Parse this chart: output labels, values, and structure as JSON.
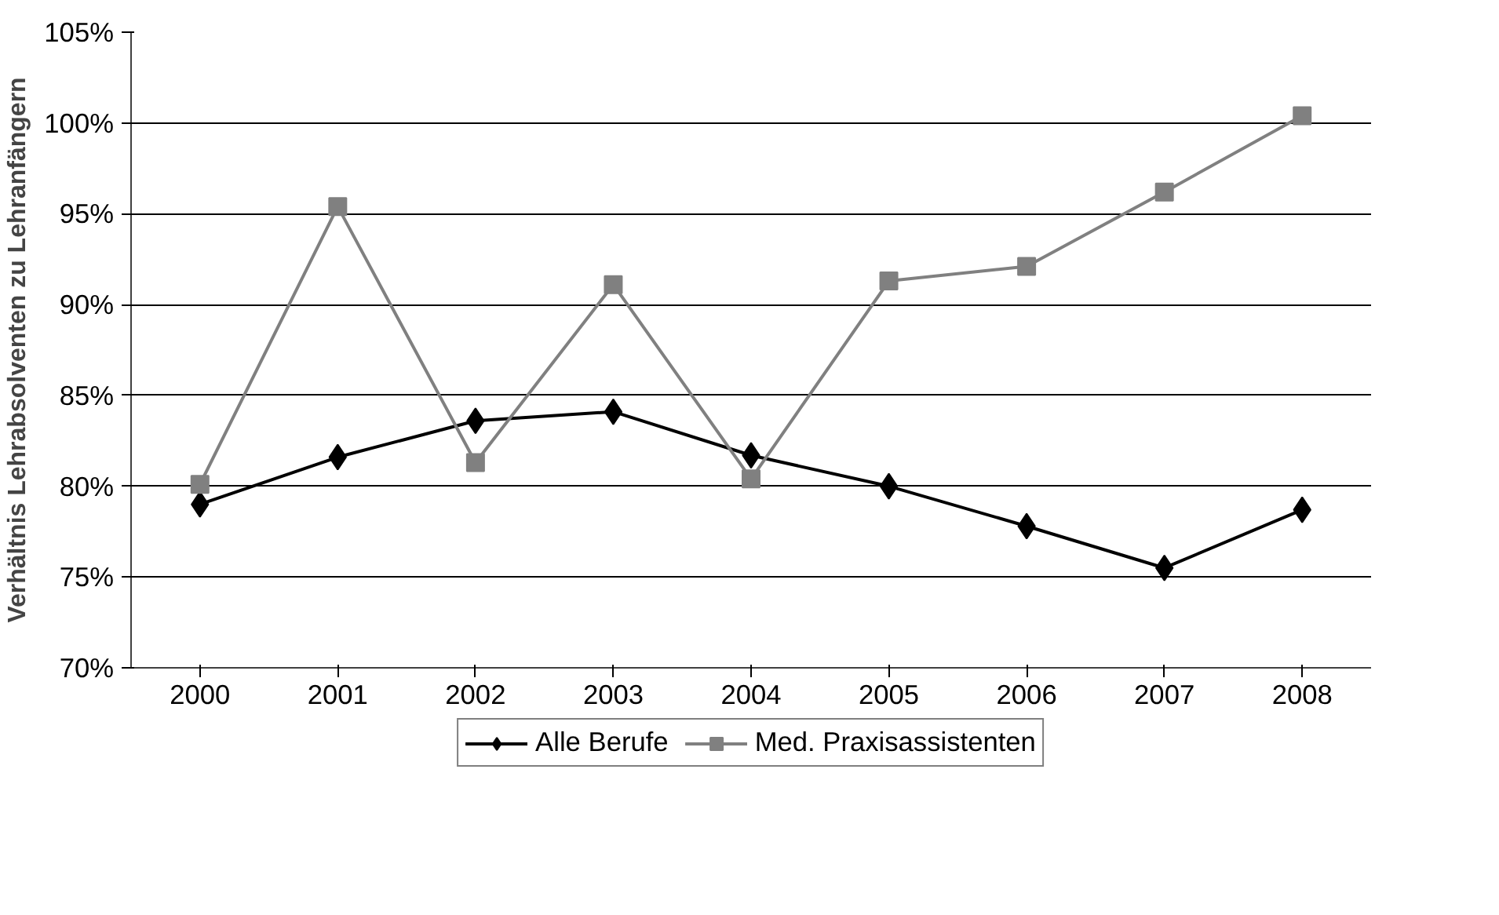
{
  "chart_data": {
    "type": "line",
    "ylabel": "Verhältnis Lehrabsolventen zu Lehranfängern",
    "categories": [
      "2000",
      "2001",
      "2002",
      "2003",
      "2004",
      "2005",
      "2006",
      "2007",
      "2008"
    ],
    "series": [
      {
        "name": "Alle Berufe",
        "color": "#000000",
        "marker": "diamond",
        "values": [
          79.0,
          81.6,
          83.6,
          84.1,
          81.7,
          80.0,
          77.8,
          75.5,
          78.7
        ]
      },
      {
        "name": "Med. Praxisassistenten",
        "color": "#808080",
        "marker": "square",
        "values": [
          80.1,
          95.4,
          81.3,
          91.1,
          80.4,
          91.3,
          92.1,
          96.2,
          100.4
        ]
      }
    ],
    "ylim": [
      70,
      105
    ],
    "yticks": [
      {
        "value": 70,
        "label": "70%"
      },
      {
        "value": 75,
        "label": "75%"
      },
      {
        "value": 80,
        "label": "80%"
      },
      {
        "value": 85,
        "label": "85%"
      },
      {
        "value": 90,
        "label": "90%"
      },
      {
        "value": 95,
        "label": "95%"
      },
      {
        "value": 100,
        "label": "100%"
      },
      {
        "value": 105,
        "label": "105%"
      }
    ],
    "grid": "y",
    "legend": "bottom",
    "line_style": "solid"
  }
}
